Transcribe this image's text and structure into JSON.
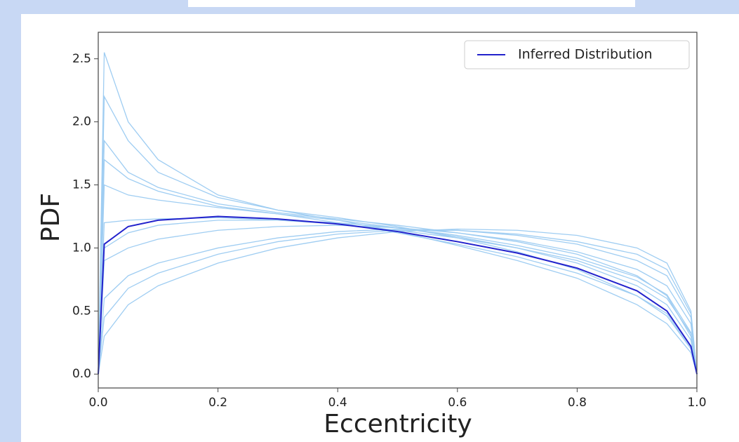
{
  "chart_data": {
    "type": "line",
    "xlabel": "Eccentricity",
    "ylabel": "PDF",
    "x": [
      0,
      0.01,
      0.05,
      0.1,
      0.2,
      0.3,
      0.4,
      0.5,
      0.6,
      0.7,
      0.8,
      0.9,
      0.95,
      0.99,
      1
    ],
    "xlim": [
      0,
      1
    ],
    "ylim": [
      -0.11,
      2.71
    ],
    "xticks": [
      {
        "value": 0,
        "label": "0.0"
      },
      0.2,
      0.4,
      0.6,
      0.8,
      {
        "value": 1,
        "label": "1.0"
      }
    ],
    "yticks": [
      {
        "value": 0,
        "label": "0.0"
      },
      0.5,
      {
        "value": 1,
        "label": "1.0"
      },
      1.5,
      {
        "value": 2,
        "label": "2.0"
      },
      2.5
    ],
    "legend": "upper right",
    "series": [
      {
        "color": "#9fcdf2",
        "values": [
          0,
          2.55,
          2.0,
          1.7,
          1.42,
          1.3,
          1.22,
          1.13,
          1.02,
          0.9,
          0.76,
          0.55,
          0.4,
          0.17,
          0
        ]
      },
      {
        "color": "#9fcdf2",
        "values": [
          0,
          2.2,
          1.85,
          1.6,
          1.4,
          1.3,
          1.24,
          1.17,
          1.08,
          0.97,
          0.83,
          0.62,
          0.46,
          0.2,
          0
        ]
      },
      {
        "color": "#9fcdf2",
        "values": [
          0,
          1.85,
          1.6,
          1.48,
          1.35,
          1.28,
          1.23,
          1.18,
          1.12,
          1.05,
          0.95,
          0.78,
          0.62,
          0.3,
          0
        ]
      },
      {
        "color": "#9fcdf2",
        "values": [
          0,
          1.5,
          1.42,
          1.38,
          1.32,
          1.27,
          1.22,
          1.16,
          1.09,
          1.0,
          0.88,
          0.7,
          0.55,
          0.27,
          0
        ]
      },
      {
        "color": "#9fcdf2",
        "values": [
          0,
          1.2,
          1.22,
          1.23,
          1.24,
          1.22,
          1.19,
          1.14,
          1.08,
          1.0,
          0.9,
          0.74,
          0.6,
          0.32,
          0
        ]
      },
      {
        "color": "#9fcdf2",
        "values": [
          0,
          0.9,
          1.0,
          1.07,
          1.14,
          1.17,
          1.18,
          1.16,
          1.12,
          1.06,
          0.97,
          0.83,
          0.7,
          0.4,
          0
        ]
      },
      {
        "color": "#9fcdf2",
        "values": [
          0,
          0.6,
          0.78,
          0.88,
          1.0,
          1.08,
          1.13,
          1.15,
          1.14,
          1.1,
          1.03,
          0.9,
          0.78,
          0.45,
          0
        ]
      },
      {
        "color": "#9fcdf2",
        "values": [
          0,
          0.3,
          0.55,
          0.7,
          0.88,
          1.0,
          1.08,
          1.13,
          1.15,
          1.14,
          1.1,
          1.0,
          0.88,
          0.5,
          0
        ]
      },
      {
        "color": "#9fcdf2",
        "values": [
          0,
          1.7,
          1.55,
          1.45,
          1.33,
          1.27,
          1.2,
          1.12,
          1.03,
          0.93,
          0.8,
          0.62,
          0.48,
          0.2,
          0
        ]
      },
      {
        "color": "#9fcdf2",
        "values": [
          0,
          1.0,
          1.12,
          1.18,
          1.22,
          1.22,
          1.2,
          1.16,
          1.1,
          1.02,
          0.92,
          0.77,
          0.63,
          0.33,
          0
        ]
      },
      {
        "color": "#9fcdf2",
        "values": [
          0,
          0.45,
          0.68,
          0.8,
          0.95,
          1.05,
          1.11,
          1.14,
          1.14,
          1.11,
          1.05,
          0.95,
          0.83,
          0.48,
          0
        ]
      },
      {
        "name": "Inferred Distribution",
        "color": "#2222cc",
        "values": [
          0,
          1.03,
          1.17,
          1.22,
          1.25,
          1.23,
          1.19,
          1.13,
          1.05,
          0.96,
          0.84,
          0.66,
          0.5,
          0.22,
          0
        ]
      }
    ]
  }
}
